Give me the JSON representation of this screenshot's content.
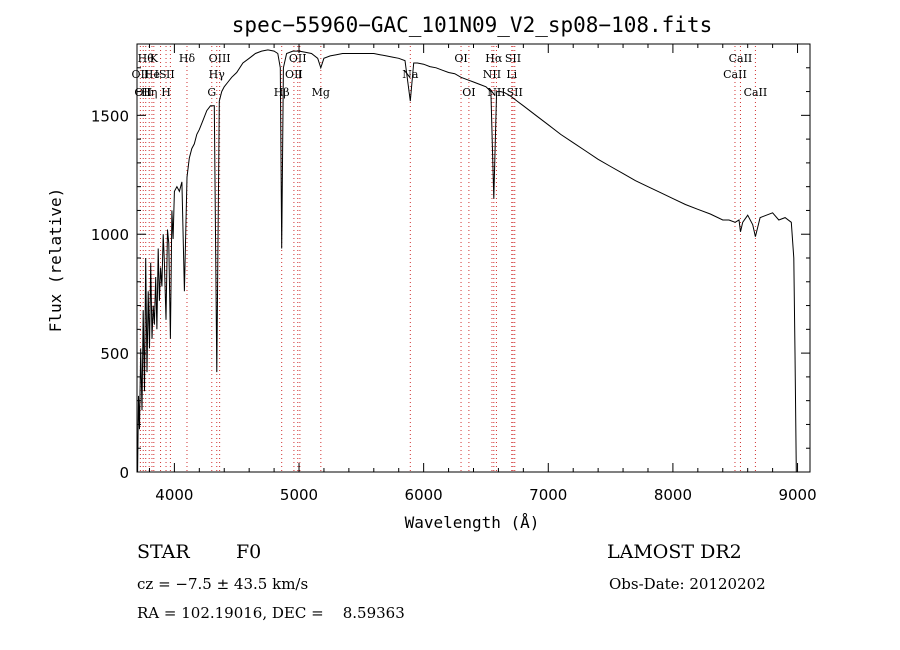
{
  "chart_data": {
    "type": "line",
    "title": "spec−55960−GAC_101N09_V2_sp08−108.fits",
    "xlabel": "Wavelength (Å)",
    "ylabel": "Flux (relative)",
    "xlim": [
      3700,
      9100
    ],
    "ylim": [
      0,
      1800
    ],
    "xticks": [
      4000,
      5000,
      6000,
      7000,
      8000,
      9000
    ],
    "yticks": [
      0,
      500,
      1000,
      1500
    ],
    "grid": false,
    "series": [
      {
        "x": [
          3705,
          3712,
          3720,
          3730,
          3740,
          3750,
          3760,
          3770,
          3780,
          3790,
          3800,
          3810,
          3820,
          3830,
          3840,
          3850,
          3860,
          3870,
          3880,
          3889,
          3900,
          3910,
          3920,
          3933,
          3945,
          3955,
          3968,
          3980,
          3990,
          4000,
          4020,
          4040,
          4060,
          4080,
          4101,
          4120,
          4140,
          4160,
          4180,
          4200,
          4230,
          4260,
          4290,
          4320,
          4340,
          4360,
          4380,
          4400,
          4430,
          4460,
          4500,
          4550,
          4600,
          4650,
          4700,
          4750,
          4800,
          4830,
          4850,
          4861,
          4875,
          4900,
          4950,
          5000,
          5050,
          5100,
          5150,
          5175,
          5200,
          5250,
          5300,
          5350,
          5400,
          5450,
          5500,
          5550,
          5600,
          5650,
          5700,
          5750,
          5800,
          5850,
          5893,
          5920,
          5950,
          6000,
          6050,
          6100,
          6150,
          6200,
          6250,
          6300,
          6350,
          6400,
          6450,
          6500,
          6540,
          6563,
          6585,
          6620,
          6650,
          6700,
          6750,
          6800,
          6900,
          7000,
          7100,
          7200,
          7300,
          7400,
          7500,
          7600,
          7700,
          7800,
          7900,
          8000,
          8100,
          8200,
          8300,
          8400,
          8450,
          8500,
          8530,
          8542,
          8560,
          8600,
          8640,
          8662,
          8700,
          8750,
          8800,
          8850,
          8900,
          8950,
          8970,
          8980,
          8990,
          9000
        ],
        "y": [
          0,
          320,
          180,
          520,
          260,
          680,
          340,
          900,
          420,
          760,
          520,
          880,
          560,
          700,
          620,
          820,
          600,
          940,
          720,
          860,
          780,
          1000,
          880,
          640,
          1020,
          960,
          560,
          1100,
          980,
          1180,
          1200,
          1180,
          1220,
          760,
          1240,
          1320,
          1360,
          1380,
          1420,
          1440,
          1480,
          1520,
          1540,
          1540,
          420,
          1560,
          1600,
          1620,
          1640,
          1660,
          1680,
          1720,
          1740,
          1760,
          1770,
          1775,
          1770,
          1760,
          1700,
          940,
          1700,
          1760,
          1770,
          1770,
          1765,
          1760,
          1740,
          1700,
          1740,
          1750,
          1755,
          1760,
          1760,
          1760,
          1760,
          1760,
          1760,
          1755,
          1750,
          1745,
          1740,
          1730,
          1560,
          1720,
          1720,
          1715,
          1705,
          1700,
          1690,
          1680,
          1675,
          1660,
          1650,
          1640,
          1630,
          1620,
          1600,
          1150,
          1600,
          1600,
          1595,
          1580,
          1560,
          1540,
          1500,
          1460,
          1420,
          1385,
          1350,
          1315,
          1285,
          1255,
          1225,
          1200,
          1175,
          1150,
          1125,
          1105,
          1085,
          1060,
          1060,
          1050,
          1060,
          1010,
          1050,
          1080,
          1040,
          990,
          1070,
          1080,
          1090,
          1060,
          1070,
          1050,
          900,
          500,
          0,
          0
        ]
      }
    ],
    "line_markers": [
      {
        "wl": 3727,
        "label": "OII",
        "row": 2
      },
      {
        "wl": 3750,
        "label": "OII",
        "row": 3
      },
      {
        "wl": 3770,
        "label": "Hθ",
        "row": 1
      },
      {
        "wl": 3798,
        "label": "Hη",
        "row": 3
      },
      {
        "wl": 3820,
        "label": "He",
        "row": 2
      },
      {
        "wl": 3835,
        "label": "K",
        "row": 1
      },
      {
        "wl": 3889,
        "label": "IS",
        "row": 2
      },
      {
        "wl": 3933,
        "label": "H",
        "row": 3
      },
      {
        "wl": 3968,
        "label": "II",
        "row": 2
      },
      {
        "wl": 4101,
        "label": "Hδ",
        "row": 1
      },
      {
        "wl": 4300,
        "label": "G",
        "row": 3
      },
      {
        "wl": 4340,
        "label": "Hγ",
        "row": 2
      },
      {
        "wl": 4363,
        "label": "OIII",
        "row": 1
      },
      {
        "wl": 4861,
        "label": "Hβ",
        "row": 3
      },
      {
        "wl": 4959,
        "label": "OII",
        "row": 2
      },
      {
        "wl": 4990,
        "label": "OII",
        "row": 1
      },
      {
        "wl": 5007,
        "label": "I",
        "row": 2
      },
      {
        "wl": 5175,
        "label": "Mg",
        "row": 3
      },
      {
        "wl": 5893,
        "label": "Na",
        "row": 2
      },
      {
        "wl": 6300,
        "label": "OI",
        "row": 1
      },
      {
        "wl": 6363,
        "label": "OI",
        "row": 3
      },
      {
        "wl": 6548,
        "label": "NII",
        "row": 2
      },
      {
        "wl": 6563,
        "label": "Hα",
        "row": 1
      },
      {
        "wl": 6584,
        "label": "NII",
        "row": 3
      },
      {
        "wl": 6707,
        "label": "Li",
        "row": 2
      },
      {
        "wl": 6717,
        "label": "SII",
        "row": 1
      },
      {
        "wl": 6731,
        "label": "SII",
        "row": 3
      },
      {
        "wl": 8498,
        "label": "CaII",
        "row": 2
      },
      {
        "wl": 8542,
        "label": "CaII",
        "row": 1
      },
      {
        "wl": 8662,
        "label": "CaII",
        "row": 3
      }
    ]
  },
  "info": {
    "object_class": "STAR",
    "subclass": "F0",
    "survey": "LAMOST DR2",
    "cz": "cz = −7.5 ± 43.5 km/s",
    "obs_date": "Obs-Date: 20120202",
    "coords": "RA = 102.19016, DEC =    8.59363"
  }
}
